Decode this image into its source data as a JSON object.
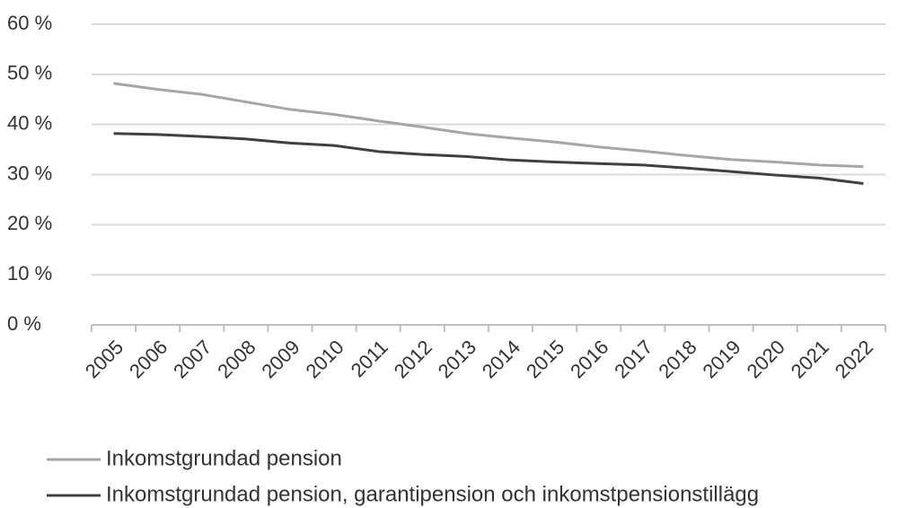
{
  "chart_data": {
    "type": "line",
    "categories": [
      "2005",
      "2006",
      "2007",
      "2008",
      "2009",
      "2010",
      "2011",
      "2012",
      "2013",
      "2014",
      "2015",
      "2016",
      "2017",
      "2018",
      "2019",
      "2020",
      "2021",
      "2022"
    ],
    "series": [
      {
        "name": "Inkomstgrundad pension",
        "color": "#a6a6a6",
        "values": [
          48.2,
          47,
          46,
          44.5,
          43,
          42,
          40.7,
          39.5,
          38.2,
          37.3,
          36.5,
          35.5,
          34.7,
          33.8,
          33,
          32.5,
          31.9,
          31.6
        ]
      },
      {
        "name": "Inkomstgrundad pension, garantipension och inkomstpensionstillägg",
        "color": "#404040",
        "values": [
          38.2,
          38,
          37.6,
          37.1,
          36.3,
          35.8,
          34.6,
          34,
          33.6,
          32.9,
          32.5,
          32.2,
          31.9,
          31.3,
          30.6,
          29.9,
          29.3,
          28.2
        ]
      }
    ],
    "ylim": [
      0,
      60
    ],
    "yticks": [
      {
        "value": 0,
        "label": "0 %"
      },
      {
        "value": 10,
        "label": "10 %"
      },
      {
        "value": 20,
        "label": "20 %"
      },
      {
        "value": 30,
        "label": "30 %"
      },
      {
        "value": 40,
        "label": "40 %"
      },
      {
        "value": 50,
        "label": "50 %"
      },
      {
        "value": 60,
        "label": "60 %"
      }
    ],
    "grid": true,
    "legend": "bottom"
  }
}
